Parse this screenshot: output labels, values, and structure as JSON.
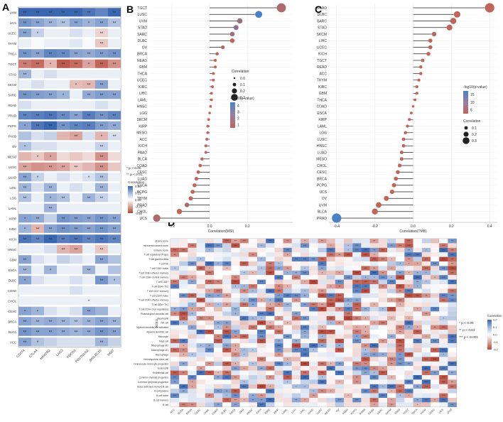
{
  "panel_labels": [
    "A",
    "B",
    "C",
    "D"
  ],
  "chart_data": [
    {
      "panel": "A",
      "type": "heatmap",
      "title": "",
      "columns": [
        "CD274",
        "CTLA4",
        "HAVCR2",
        "LAG3",
        "PDCD1",
        "PDCD1LG2",
        "SIGLEC15",
        "TIGIT"
      ],
      "rows": [
        "UVM",
        "UCS",
        "UCEC",
        "THYM",
        "THCA",
        "TGCT",
        "STAD",
        "SKCM",
        "SARC",
        "READ",
        "PRAD",
        "PCPG",
        "PAAD",
        "OV",
        "MESO",
        "LUSC",
        "LUAD",
        "LIHC",
        "LGG",
        "LAML",
        "KIRP",
        "KIRC",
        "KICH",
        "HNSC",
        "GBM",
        "ESCA",
        "DLBC",
        "COAD",
        "CHOL",
        "CESC",
        "BRCA",
        "BLCA",
        "ACC"
      ],
      "values": [
        [
          0.52,
          0.5,
          0.58,
          0.65,
          0.72,
          0.45,
          0.4,
          0.55
        ],
        [
          0.35,
          0.3,
          0.25,
          0.2,
          0.3,
          0.25,
          0.3,
          0.2
        ],
        [
          0.3,
          0.15,
          0.05,
          0.05,
          0.1,
          0.05,
          -0.12,
          0.05
        ],
        [
          0.05,
          0.02,
          0.05,
          0.05,
          0.08,
          0.02,
          -0.15,
          0.05
        ],
        [
          0.35,
          0.3,
          0.4,
          0.38,
          0.3,
          0.28,
          0.32,
          0.35
        ],
        [
          -0.35,
          -0.4,
          -0.2,
          -0.45,
          -0.4,
          -0.25,
          -0.42,
          -0.3
        ],
        [
          0.25,
          0.05,
          0.1,
          0.05,
          0.05,
          0.05,
          0.05,
          0.05
        ],
        [
          0.05,
          0.1,
          0.05,
          0.05,
          -0.18,
          -0.2,
          0.3,
          0.05
        ],
        [
          0.35,
          0.32,
          0.3,
          0.25,
          0.05,
          0.28,
          0.32,
          0.3
        ],
        [
          0.1,
          0.05,
          0.05,
          0.05,
          0.05,
          0.05,
          0.1,
          0.05
        ],
        [
          0.4,
          0.42,
          0.45,
          0.38,
          0.3,
          0.42,
          0.35,
          0.4
        ],
        [
          0.3,
          0.45,
          0.55,
          0.35,
          0.4,
          0.42,
          0.32,
          0.28
        ],
        [
          0.2,
          0.1,
          0.15,
          -0.2,
          -0.25,
          0.1,
          -0.2,
          0.1
        ],
        [
          0.2,
          0.1,
          0.1,
          0.05,
          0.05,
          0.05,
          0.15,
          0.05
        ],
        [
          -0.2,
          -0.15,
          -0.25,
          -0.1,
          -0.15,
          -0.1,
          -0.3,
          -0.1
        ],
        [
          -0.25,
          -0.3,
          -0.28,
          -0.25,
          -0.15,
          -0.2,
          -0.3,
          -0.15
        ],
        [
          0.3,
          0.15,
          0.05,
          0.1,
          0.05,
          0.1,
          0.2,
          0.05
        ],
        [
          0.25,
          0.1,
          0.25,
          0.05,
          0.1,
          0.05,
          0.25,
          0.05
        ],
        [
          0.2,
          0.05,
          0.25,
          0.2,
          0.05,
          0.25,
          0.15,
          0.05
        ],
        [
          0.05,
          0.05,
          0.25,
          0.05,
          0.05,
          0.05,
          0.05,
          0.05
        ],
        [
          0.3,
          0.28,
          0.15,
          0.35,
          0.32,
          0.3,
          0.35,
          0.3
        ],
        [
          0.25,
          -0.2,
          0.3,
          0.35,
          0.32,
          0.3,
          0.35,
          0.3
        ],
        [
          0.45,
          0.4,
          0.5,
          0.42,
          0.45,
          0.4,
          0.45,
          0.4
        ],
        [
          0.05,
          0.05,
          0.1,
          -0.2,
          -0.25,
          0.05,
          -0.15,
          0.05
        ],
        [
          0.3,
          0.1,
          0.05,
          0.15,
          0.1,
          0.05,
          0.3,
          0.2
        ],
        [
          0.25,
          0.05,
          0.25,
          0.05,
          0.05,
          0.25,
          0.05,
          0.2
        ],
        [
          0.3,
          0.1,
          0.05,
          0.05,
          0.1,
          0.05,
          0.35,
          0.2
        ],
        [
          0.05,
          0.05,
          0.05,
          0.05,
          0.1,
          0.05,
          0.05,
          0.05
        ],
        [
          0.05,
          0.05,
          0.05,
          0.05,
          0.05,
          0.05,
          0.05,
          0.05
        ],
        [
          0.3,
          0.25,
          0.1,
          0.05,
          0.1,
          0.3,
          0.25,
          0.05
        ],
        [
          0.3,
          0.25,
          0.28,
          0.25,
          0.2,
          0.25,
          0.3,
          0.25
        ],
        [
          0.35,
          0.3,
          0.3,
          0.28,
          0.25,
          0.28,
          0.35,
          0.3
        ],
        [
          0.3,
          0.2,
          0.15,
          0.1,
          0.1,
          0.1,
          0.25,
          0.15
        ]
      ],
      "significance": [
        [
          "**",
          "**",
          "**",
          "**",
          "**",
          "**",
          "",
          "**"
        ],
        [
          "**",
          "**",
          "**",
          "**",
          "**",
          "*",
          "**",
          "**"
        ],
        [
          "**",
          "*",
          "",
          "",
          "",
          "",
          "**",
          ""
        ],
        [
          "",
          "",
          "",
          "",
          "",
          "",
          "**",
          ""
        ],
        [
          "**",
          "**",
          "**",
          "**",
          "**",
          "**",
          "**",
          "**"
        ],
        [
          "**",
          "**",
          "*",
          "**",
          "**",
          "*",
          "**",
          "**"
        ],
        [
          "**",
          "",
          "",
          "",
          "",
          "",
          "",
          ""
        ],
        [
          "",
          "",
          "",
          "",
          "*",
          "**",
          "**",
          ""
        ],
        [
          "**",
          "**",
          "**",
          "*",
          "",
          "**",
          "**",
          "**"
        ],
        [
          "",
          "",
          "",
          "",
          "",
          "",
          "",
          ""
        ],
        [
          "**",
          "**",
          "**",
          "**",
          "**",
          "**",
          "**",
          "**"
        ],
        [
          "*",
          "**",
          "**",
          "**",
          "**",
          "**",
          "**",
          "**"
        ],
        [
          "",
          "",
          "",
          "",
          "**",
          "",
          "*",
          "**"
        ],
        [
          "*",
          "",
          "",
          "",
          "",
          "",
          "**",
          ""
        ],
        [
          "",
          "*",
          "*",
          "",
          "",
          "",
          "**",
          ""
        ],
        [
          "**",
          "",
          "**",
          "**",
          "**",
          "",
          "**",
          ""
        ],
        [
          "**",
          "*",
          "",
          "",
          "",
          "*",
          "**",
          ""
        ],
        [
          "**",
          "",
          "**",
          "",
          "",
          "",
          "**",
          ""
        ],
        [
          "**",
          "",
          "*",
          "**",
          "",
          "**",
          "**",
          ""
        ],
        [
          "",
          "",
          "**",
          "",
          "",
          "",
          "",
          ""
        ],
        [
          "*",
          "**",
          "",
          "**",
          "**",
          "**",
          "**",
          "**"
        ],
        [
          "*",
          "**",
          "**",
          "**",
          "**",
          "**",
          "**",
          "**"
        ],
        [
          "**",
          "**",
          "**",
          "**",
          "**",
          "**",
          "**",
          "**"
        ],
        [
          "",
          "",
          "",
          "**",
          "**",
          "",
          "**",
          ""
        ],
        [
          "**",
          "",
          "",
          "",
          "",
          "",
          "**",
          ""
        ],
        [
          "**",
          "",
          "*",
          "",
          "",
          "**",
          "",
          ""
        ],
        [
          "*",
          "",
          "",
          "",
          "",
          "",
          "**",
          "*"
        ],
        [
          "",
          "",
          "",
          "",
          "",
          "",
          "",
          ""
        ],
        [
          "",
          "",
          "",
          "",
          "",
          "*",
          "",
          ""
        ],
        [
          "*",
          "*",
          "",
          "",
          "",
          "**",
          "",
          ""
        ],
        [
          "**",
          "**",
          "**",
          "**",
          "**",
          "**",
          "**",
          "**"
        ],
        [
          "**",
          "**",
          "**",
          "**",
          "**",
          "**",
          "**",
          "**"
        ],
        [
          "**",
          "*",
          "",
          "",
          "",
          "",
          "**",
          ""
        ]
      ],
      "legend": {
        "sig_notes": [
          "* p < 0.05",
          "** p < 0.01"
        ],
        "colorbar_title": "Correlation",
        "ticks": [
          0.5,
          0.25,
          0,
          -0.25,
          -0.5
        ],
        "tick_labels": [
          "0.50",
          "0.25",
          "0.00",
          "-0.25",
          "-0.50"
        ],
        "range": [
          -0.5,
          0.5
        ]
      }
    },
    {
      "panel": "B",
      "type": "lollipop",
      "xlabel": "Correlation(MSI)",
      "xlim": [
        -0.32,
        0.44
      ],
      "xticks": [
        -0.2,
        0,
        0.2
      ],
      "xtick_labels": [
        "-0.2",
        "0.0",
        "0.2"
      ],
      "categories": [
        "TGCT",
        "LUSC",
        "UVM",
        "STAD",
        "SARC",
        "DLBC",
        "OV",
        "BRCA",
        "READ",
        "GBM",
        "THCA",
        "UCEC",
        "KIRC",
        "LIHC",
        "LAML",
        "HNSC",
        "LGG",
        "SKCM",
        "KIRP",
        "MESO",
        "ACC",
        "KICH",
        "PAAD",
        "BLCA",
        "COAD",
        "CESC",
        "LUAD",
        "ESCA",
        "PCPG",
        "THYM",
        "PRAD",
        "CHOL",
        "UCS"
      ],
      "values": [
        0.38,
        0.26,
        0.16,
        0.14,
        0.12,
        0.12,
        0.07,
        0.04,
        0.03,
        0.03,
        0.02,
        0.02,
        0.015,
        0.01,
        0.01,
        0.005,
        0.0,
        -0.005,
        -0.01,
        -0.01,
        -0.015,
        -0.02,
        -0.02,
        -0.04,
        -0.05,
        -0.06,
        -0.07,
        -0.08,
        -0.09,
        -0.1,
        -0.12,
        -0.16,
        -0.28
      ],
      "neglog10p": [
        1.5,
        4.0,
        2.0,
        2.2,
        2.0,
        1.0,
        1.5,
        1.0,
        1.0,
        1.0,
        1.0,
        1.0,
        1.0,
        1.0,
        1.0,
        1.0,
        1.0,
        1.0,
        1.0,
        1.0,
        1.0,
        1.0,
        1.0,
        1.0,
        1.0,
        1.0,
        1.0,
        1.0,
        1.0,
        1.0,
        1.5,
        1.0,
        1.5
      ],
      "size_legend": {
        "title": "Correlation",
        "labels": [
          "0.0",
          "0.1",
          "0.2",
          "0.3"
        ],
        "values": [
          0.0,
          0.1,
          0.2,
          0.3
        ]
      },
      "color_legend": {
        "title": "-log10(p-value)",
        "labels": [
          "4",
          "3",
          "2",
          "1"
        ],
        "values": [
          4,
          3,
          2,
          1
        ]
      }
    },
    {
      "panel": "C",
      "type": "lollipop",
      "xlabel": "Correlation(TMB)",
      "xlim": [
        -0.44,
        0.44
      ],
      "xticks": [
        -0.4,
        -0.2,
        0,
        0.2,
        0.4
      ],
      "xtick_labels": [
        "-0.4",
        "-0.2",
        "0.0",
        "0.2",
        "0.4"
      ],
      "categories": [
        "PAAD",
        "DLBC",
        "SARC",
        "STAD",
        "SKCM",
        "LIHC",
        "UCEC",
        "KICH",
        "TGCT",
        "READ",
        "ACC",
        "THYM",
        "KIRC",
        "GBM",
        "THCA",
        "COAD",
        "ESCA",
        "KIRP",
        "LAML",
        "LGG",
        "LUSC",
        "HNSC",
        "LUAD",
        "MESO",
        "CHOL",
        "CESC",
        "BRCA",
        "PCPG",
        "UCS",
        "OV",
        "UVM",
        "BLCA",
        "PRAD"
      ],
      "values": [
        0.4,
        0.23,
        0.21,
        0.19,
        0.11,
        0.09,
        0.09,
        0.08,
        0.05,
        0.04,
        0.04,
        0.03,
        0.02,
        0.02,
        0.01,
        0.0,
        -0.01,
        -0.02,
        -0.03,
        -0.04,
        -0.05,
        -0.05,
        -0.06,
        -0.06,
        -0.07,
        -0.08,
        -0.09,
        -0.1,
        -0.11,
        -0.14,
        -0.18,
        -0.2,
        -0.4
      ],
      "neglog10p": [
        5,
        5,
        5,
        5,
        5,
        5,
        5,
        5,
        5,
        5,
        5,
        5,
        5,
        5,
        5,
        5,
        5,
        5,
        5,
        5,
        5,
        5,
        5,
        5,
        5,
        5,
        5,
        5,
        5,
        5,
        5,
        5,
        15
      ],
      "size_legend": {
        "title": "Correlation",
        "labels": [
          "0.1",
          "0.2",
          "0.3"
        ],
        "values": [
          0.1,
          0.2,
          0.3
        ]
      },
      "color_legend": {
        "title": "-log10(p-value)",
        "labels": [
          "15",
          "10",
          "5"
        ],
        "values": [
          15,
          10,
          5
        ]
      }
    },
    {
      "panel": "D",
      "type": "heatmap",
      "ylabel": "XCELL",
      "rows": [
        "stroma score",
        "microenvironment score",
        "immune score",
        "T cell regulatory (Tregs)",
        "T cell gamma delta",
        "T cell NK",
        "T cell CD8+ naive",
        "T cell CD8+ effector memory",
        "T cell CD8+ central memory",
        "T cell CD8+",
        "T cell CD4+ Th2",
        "T cell CD4+ memory",
        "T cell CD4+ naive",
        "T cell CD4+ effector memory",
        "T cell CD4+ Th1",
        "T cell CD4+ (non-regulatory)",
        "Plasmacytoid dendritic cell",
        "Neutrophil",
        "NK cell",
        "Myeloid dendritic cell activated",
        "Myeloid dendritic cell",
        "Monocyte",
        "Mast cell",
        "Macrophage M2",
        "Macrophage M1",
        "Macrophage",
        "Hematopoietic stem cell",
        "Granulocyte-monocyte progenitor",
        "Eosinophil",
        "Endothelial cell",
        "Common myeloid progenitor",
        "Common lymphoid progenitor",
        "Class-switched memory B cell",
        "B cell plasma",
        "B cell naive",
        "B cell memory",
        "B cell"
      ],
      "columns": [
        "ACC",
        "BLCA",
        "BRCA",
        "CESC",
        "CHOL",
        "COAD",
        "DLBC",
        "ESCA",
        "GBM",
        "HNSC",
        "KICH",
        "KIRC",
        "KIRP",
        "LAML",
        "LGG",
        "LIHC",
        "LUAD",
        "LUSC",
        "MESO",
        "OV",
        "PAAD",
        "PCPG",
        "PRAD",
        "READ",
        "SARC",
        "SKCM",
        "STAD",
        "TGCT",
        "THCA",
        "THYM",
        "UCEC",
        "UCS",
        "UVM"
      ],
      "legend": {
        "sig_notes": [
          "* p < 0.05",
          "** p < 0.01",
          "*** p < 0.001"
        ],
        "colorbar_title": "Correlation",
        "tick_labels": [
          "0.2",
          "0.1",
          "0.0",
          "-0.1",
          "-0.2"
        ],
        "range": [
          -0.25,
          0.25
        ]
      }
    }
  ]
}
